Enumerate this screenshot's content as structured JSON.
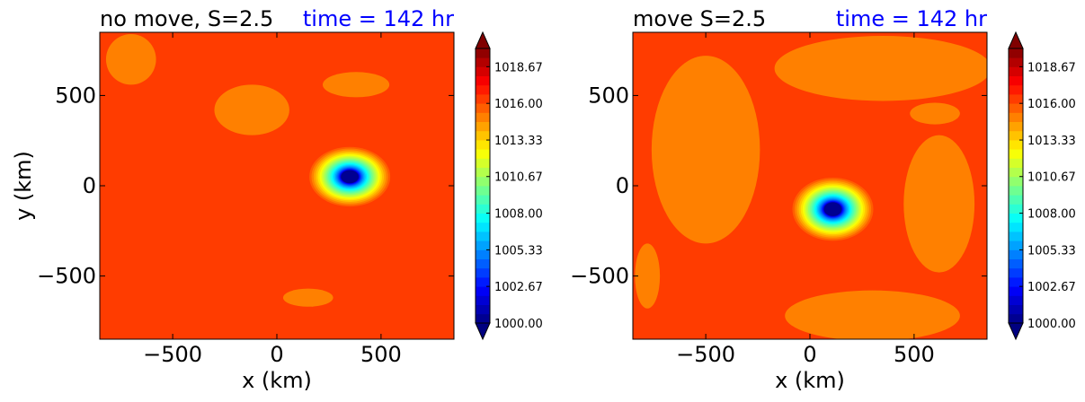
{
  "chart_data": [
    {
      "type": "heatmap",
      "subtype": "filled-contour",
      "title": "no move, S=2.5",
      "annotation": "time = 142 hr",
      "xlabel": "x (km)",
      "ylabel": "y (km)",
      "xlim": [
        -850,
        850
      ],
      "ylim": [
        -850,
        850
      ],
      "xticks": [
        -500,
        0,
        500
      ],
      "yticks": [
        -500,
        0,
        500
      ],
      "xtick_labels": [
        "−500",
        "0",
        "500"
      ],
      "ytick_labels": [
        "−500",
        "0",
        "500"
      ],
      "center": [
        350,
        50
      ],
      "min_value": 1000.0,
      "background_value": 1016.0,
      "shape": {
        "sx": 1.0,
        "sy": 0.85
      },
      "blobs": [
        {
          "level": 1014.8,
          "cx": -700,
          "cy": 700,
          "rx": 120,
          "ry": 140
        },
        {
          "level": 1015.2,
          "cx": -120,
          "cy": 420,
          "rx": 180,
          "ry": 140
        },
        {
          "level": 1015.2,
          "cx": 380,
          "cy": 560,
          "rx": 160,
          "ry": 70
        },
        {
          "level": 1015.2,
          "cx": 150,
          "cy": -620,
          "rx": 120,
          "ry": 50
        },
        {
          "level": 1015.0,
          "cx": 170,
          "cy": -640,
          "rx": 18,
          "ry": 30
        }
      ]
    },
    {
      "type": "heatmap",
      "subtype": "filled-contour",
      "title": "move S=2.5",
      "annotation": "time = 142 hr",
      "xlabel": "x (km)",
      "ylabel": "",
      "xlim": [
        -850,
        850
      ],
      "ylim": [
        -850,
        850
      ],
      "xticks": [
        -500,
        0,
        500
      ],
      "yticks": [
        -500,
        0,
        500
      ],
      "xtick_labels": [
        "−500",
        "0",
        "500"
      ],
      "ytick_labels": [
        "−500",
        "0",
        "500"
      ],
      "center": [
        110,
        -130
      ],
      "min_value": 1000.0,
      "background_value": 1016.0,
      "shape": {
        "sx": 1.0,
        "sy": 0.9
      },
      "blobs": [
        {
          "level": 1015.3,
          "cx": -500,
          "cy": 200,
          "rx": 260,
          "ry": 520
        },
        {
          "level": 1015.3,
          "cx": 350,
          "cy": 650,
          "rx": 520,
          "ry": 180
        },
        {
          "level": 1015.3,
          "cx": 300,
          "cy": -720,
          "rx": 420,
          "ry": 140
        },
        {
          "level": 1015.3,
          "cx": 620,
          "cy": -100,
          "rx": 170,
          "ry": 380
        },
        {
          "level": 1015.2,
          "cx": 600,
          "cy": 400,
          "rx": 120,
          "ry": 60
        },
        {
          "level": 1015.2,
          "cx": -780,
          "cy": -500,
          "rx": 60,
          "ry": 180
        }
      ]
    }
  ],
  "colorbar": {
    "vmin": 1000.0,
    "vmax": 1020.0,
    "levels": 30,
    "ticks": [
      "1000.00",
      "1002.67",
      "1005.33",
      "1008.00",
      "1010.67",
      "1013.33",
      "1016.00",
      "1018.67"
    ],
    "tick_values": [
      1000.0,
      1002.67,
      1005.33,
      1008.0,
      1010.67,
      1013.33,
      1016.0,
      1018.67
    ],
    "colormap": "jet",
    "extend": "both"
  },
  "colors": {
    "annotation": "#0000ff",
    "text": "#000000"
  }
}
